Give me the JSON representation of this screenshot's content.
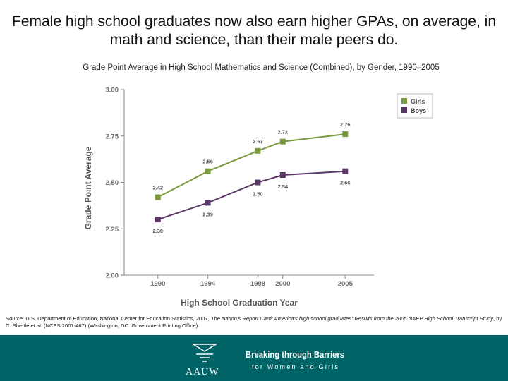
{
  "slide": {
    "headline": "Female high school graduates now also earn higher GPAs, on average, in math and science, than their male peers do.",
    "source_prefix": "Source: U.S. Department of Education, National Center for Education Statistics, 2007, ",
    "source_italic1": "The Nation's Report Card: America's high school graduates: Results from the 2005 NAEP High School Transcript Study",
    "source_suffix": ", by C. Shettle et al. (NCES 2007-467) (Washington, DC: Government Printing Office)."
  },
  "footer": {
    "aauw": "AAUW",
    "tagline_line1": "Breaking through Barriers",
    "tagline_line2": "for Women and Girls",
    "background": "#006466"
  },
  "chart_data": {
    "type": "line",
    "title": "Grade Point Average in High School Mathematics and Science (Combined), by Gender, 1990–2005",
    "xlabel": "High School Graduation Year",
    "ylabel": "Grade Point Average",
    "categories": [
      "1990",
      "1994",
      "1998",
      "2000",
      "2005"
    ],
    "x_positions": [
      1990,
      1994,
      1998,
      2000,
      2005
    ],
    "ylim": [
      2.0,
      3.0
    ],
    "yticks": [
      "2.00",
      "2.25",
      "2.50",
      "2.75",
      "3.00"
    ],
    "legend_position": "top-right",
    "grid": false,
    "series": [
      {
        "name": "Girls",
        "color": "#7a9a3e",
        "values": [
          2.42,
          2.56,
          2.67,
          2.72,
          2.76
        ],
        "labels": [
          "2.42",
          "2.56",
          "2.67",
          "2.72",
          "2.76"
        ]
      },
      {
        "name": "Boys",
        "color": "#5a3866",
        "values": [
          2.3,
          2.39,
          2.5,
          2.54,
          2.56
        ],
        "labels": [
          "2.30",
          "2.39",
          "2.50",
          "2.54",
          "2.56"
        ]
      }
    ]
  }
}
